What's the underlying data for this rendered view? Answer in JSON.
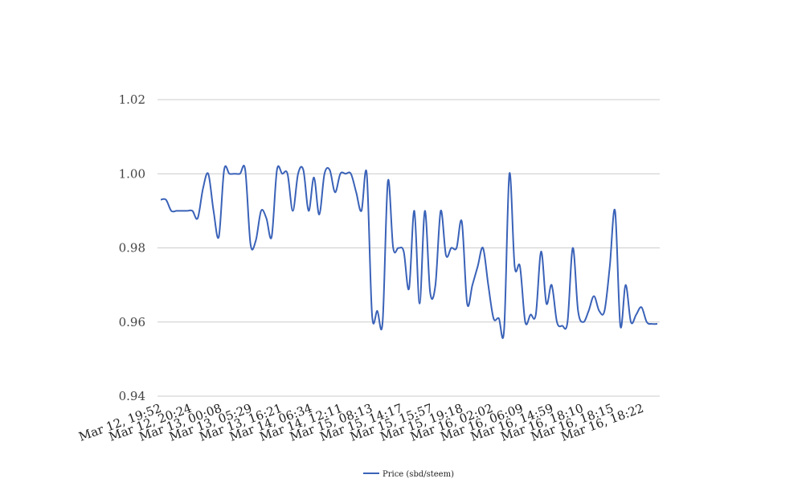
{
  "chart_data": {
    "type": "line",
    "title": "",
    "xlabel": "",
    "ylabel": "",
    "ylim": [
      0.94,
      1.02
    ],
    "yticks": [
      "0.94",
      "0.96",
      "0.98",
      "1.00",
      "1.02"
    ],
    "ytick_values": [
      0.94,
      0.96,
      0.98,
      1.0,
      1.02
    ],
    "grid": true,
    "legend_position": "bottom",
    "color": "#3a62b8",
    "x_tick_labels": [
      "Mar 12, 19:52",
      "Mar 12, 20:24",
      "Mar 13, 00:08",
      "Mar 13, 05:29",
      "Mar 13, 16:21",
      "Mar 14, 06:34",
      "Mar 14, 12:11",
      "Mar 15, 08:13",
      "Mar 15, 14:17",
      "Mar 15, 15:57",
      "Mar 15, 19:18",
      "Mar 16, 02:02",
      "Mar 16, 06:09",
      "Mar 16, 14:59",
      "Mar 16, 18:10",
      "Mar 16, 18:15",
      "Mar 16, 18:22"
    ],
    "series": [
      {
        "name": "Price (sbd/steem)",
        "values": [
          0.993,
          0.993,
          0.99,
          0.99,
          0.99,
          0.99,
          0.99,
          0.988,
          0.996,
          1.0,
          0.99,
          0.983,
          1.001,
          1.0,
          1.0,
          1.0,
          1.001,
          0.981,
          0.982,
          0.99,
          0.988,
          0.983,
          1.001,
          1.0,
          1.0,
          0.99,
          1.0,
          1.001,
          0.99,
          0.999,
          0.989,
          1.0,
          1.001,
          0.995,
          1.0,
          1.0,
          1.0,
          0.995,
          0.99,
          1.0,
          0.962,
          0.963,
          0.96,
          0.998,
          0.98,
          0.98,
          0.979,
          0.969,
          0.99,
          0.965,
          0.99,
          0.968,
          0.97,
          0.99,
          0.978,
          0.98,
          0.98,
          0.987,
          0.965,
          0.97,
          0.975,
          0.98,
          0.97,
          0.961,
          0.961,
          0.958,
          1.0,
          0.975,
          0.975,
          0.96,
          0.962,
          0.962,
          0.979,
          0.965,
          0.97,
          0.96,
          0.959,
          0.96,
          0.98,
          0.963,
          0.96,
          0.963,
          0.967,
          0.963,
          0.963,
          0.975,
          0.99,
          0.959,
          0.97,
          0.96,
          0.962,
          0.964,
          0.96,
          0.9595,
          0.9595
        ]
      }
    ]
  }
}
